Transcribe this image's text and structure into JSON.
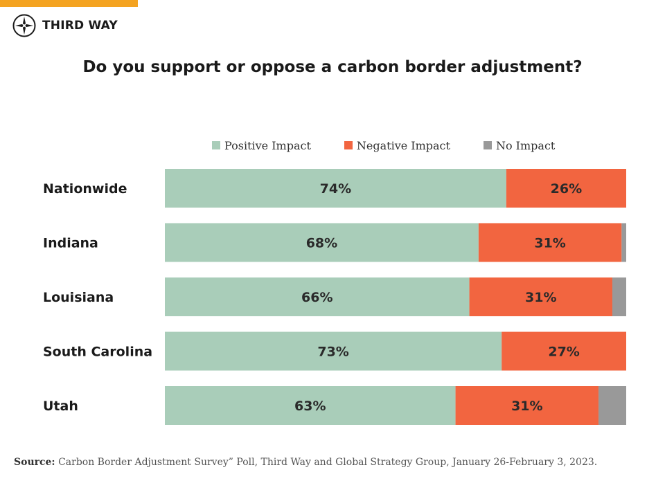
{
  "brand": {
    "name": "THIRD WAY",
    "logo_icon": "compass-star-icon",
    "accent_color": "#f4a321"
  },
  "chart_data": {
    "type": "bar",
    "orientation": "horizontal",
    "stacked": true,
    "title": "Do you support or oppose a carbon border adjustment?",
    "legend_placement": "top",
    "categories": [
      "Nationwide",
      "Indiana",
      "Louisiana",
      "South Carolina",
      "Utah"
    ],
    "series": [
      {
        "name": "Positive Impact",
        "color": "#a9cdb9",
        "values": [
          74,
          68,
          66,
          73,
          63
        ],
        "labels": [
          "74%",
          "68%",
          "66%",
          "73%",
          "63%"
        ]
      },
      {
        "name": "Negative Impact",
        "color": "#f26540",
        "values": [
          26,
          31,
          31,
          27,
          31
        ],
        "labels": [
          "26%",
          "31%",
          "31%",
          "27%",
          "31%"
        ]
      },
      {
        "name": "No Impact",
        "color": "#999999",
        "values": [
          0,
          1,
          3,
          0,
          6
        ],
        "labels": [
          "",
          "",
          "",
          "",
          ""
        ]
      }
    ],
    "xlim": [
      0,
      100
    ],
    "grid": false
  },
  "source": {
    "label": "Source:",
    "text": "Carbon Border Adjustment Survey” Poll, Third Way and Global Strategy Group, January 26-February 3, 2023."
  }
}
